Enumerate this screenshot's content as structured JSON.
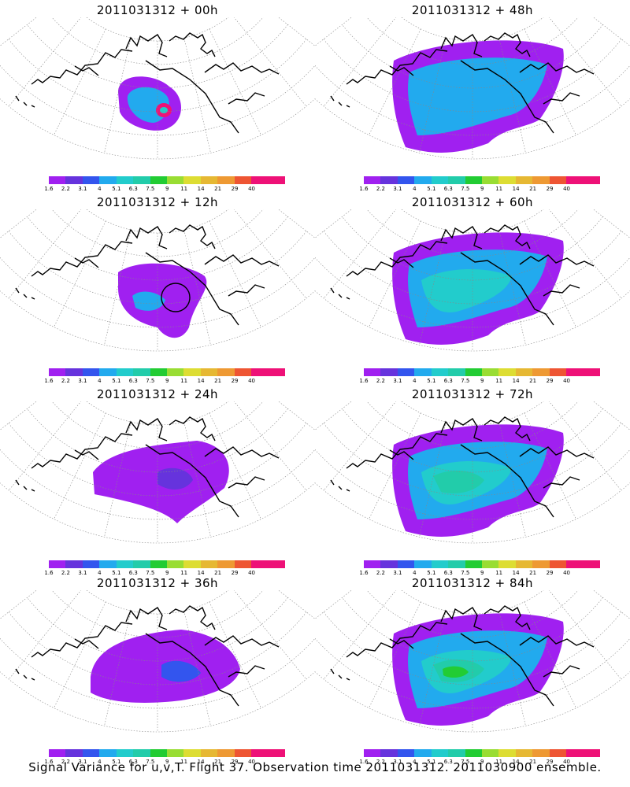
{
  "panels": [
    {
      "title": "2011031312 + 00h",
      "stage": 0
    },
    {
      "title": "2011031312 + 48h",
      "stage": 4
    },
    {
      "title": "2011031312 + 12h",
      "stage": 1
    },
    {
      "title": "2011031312 + 60h",
      "stage": 5
    },
    {
      "title": "2011031312 + 24h",
      "stage": 2
    },
    {
      "title": "2011031312 + 72h",
      "stage": 6
    },
    {
      "title": "2011031312 + 36h",
      "stage": 3
    },
    {
      "title": "2011031312 + 84h",
      "stage": 7
    }
  ],
  "colorbar": {
    "labels": [
      "1.6",
      "2.2",
      "3.1",
      "4",
      "5.1",
      "6.3",
      "7.5",
      "9",
      "11",
      "14",
      "21",
      "29",
      "40"
    ],
    "colors": [
      "#a020f0",
      "#6633dd",
      "#3355ee",
      "#22aaee",
      "#22cccc",
      "#22ccaa",
      "#22cc33",
      "#99dd33",
      "#dddd33",
      "#e6b833",
      "#ee9933",
      "#ee5533",
      "#ee1177",
      "#ee1177"
    ]
  },
  "caption": "Signal Variance for u,v,T. Flight 37. Observation time 2011031312. 2011030900 ensemble."
}
